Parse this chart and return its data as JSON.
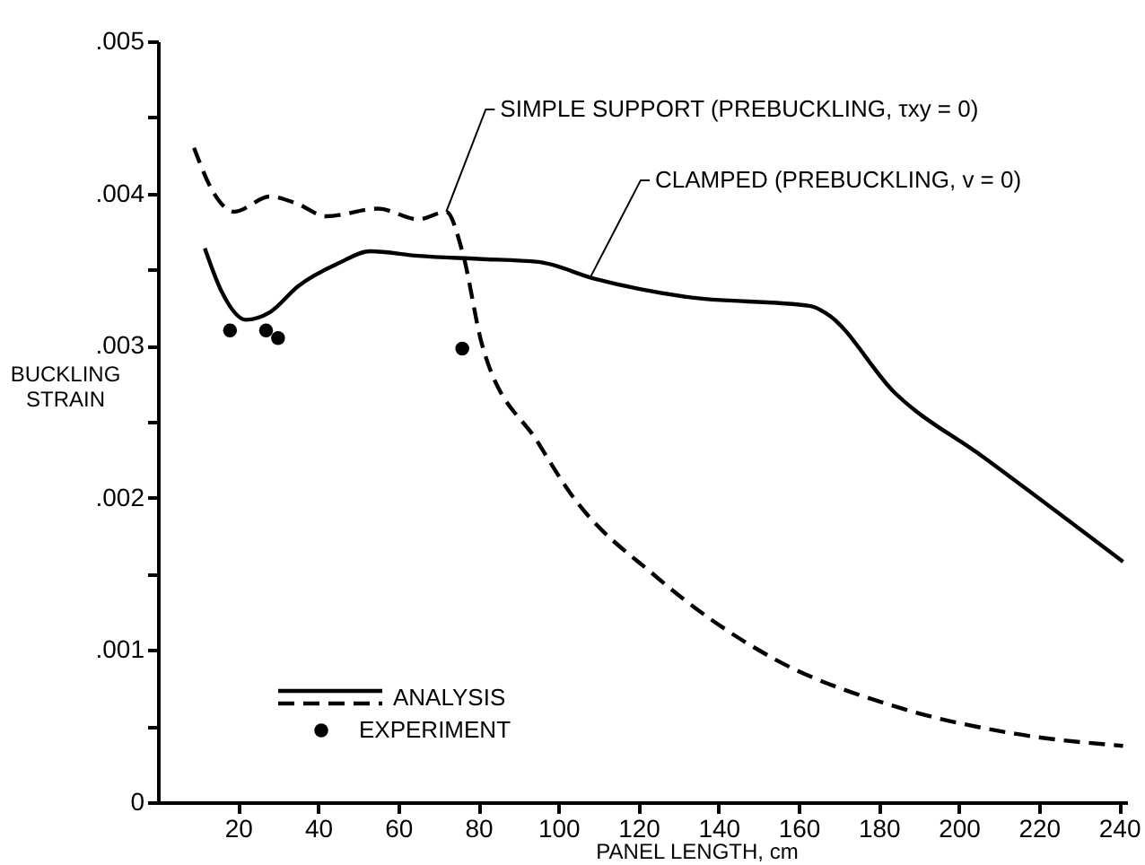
{
  "chart_data": {
    "type": "line",
    "xlabel": "PANEL LENGTH, cm",
    "ylabel": "BUCKLING STRAIN",
    "xlim": [
      0,
      242
    ],
    "xticks": [
      20,
      40,
      60,
      80,
      100,
      120,
      140,
      160,
      180,
      200,
      220,
      240
    ],
    "ylim": [
      0,
      0.005
    ],
    "yticks": [
      {
        "value": 0,
        "label": "0"
      },
      {
        "value": 0.0005,
        "label": null
      },
      {
        "value": 0.001,
        "label": ".001"
      },
      {
        "value": 0.0015,
        "label": null
      },
      {
        "value": 0.002,
        "label": ".002"
      },
      {
        "value": 0.0025,
        "label": null
      },
      {
        "value": 0.003,
        "label": ".003"
      },
      {
        "value": 0.0035,
        "label": null
      },
      {
        "value": 0.004,
        "label": ".004"
      },
      {
        "value": 0.0045,
        "label": null
      },
      {
        "value": 0.005,
        "label": ".005"
      }
    ],
    "grid": false,
    "legend": "bottom left",
    "series": [
      {
        "type": "line",
        "line_style": "dashed",
        "color": "#000000",
        "x": [
          9,
          14,
          19,
          28,
          35,
          42,
          55,
          65,
          72,
          76,
          81,
          95,
          103,
          124.5,
          154,
          184,
          214,
          241
        ],
        "values": [
          0.0043,
          0.004,
          0.00388,
          0.00398,
          0.00393,
          0.00385,
          0.0039,
          0.00383,
          0.00388,
          0.00362,
          0.003,
          0.00236,
          0.00203,
          0.00148,
          0.00094,
          0.00063,
          0.00045,
          0.00037
        ]
      },
      {
        "type": "line",
        "line_style": "solid",
        "color": "#000000",
        "x": [
          11.7,
          16,
          22,
          28,
          35,
          45,
          53,
          65,
          80,
          95,
          109,
          132,
          163,
          167,
          184,
          206,
          241
        ],
        "values": [
          0.00364,
          0.00335,
          0.00317,
          0.00322,
          0.00339,
          0.00354,
          0.00362,
          0.00359,
          0.00357,
          0.00355,
          0.00344,
          0.00332,
          0.00326,
          0.00321,
          0.00269,
          0.00227,
          0.00158
        ]
      },
      {
        "type": "scatter",
        "name": "EXPERIMENT",
        "color": "#000000",
        "marker": "circle",
        "x": [
          18,
          27,
          30,
          76
        ],
        "values": [
          0.0031,
          0.0031,
          0.00305,
          0.00298
        ]
      }
    ],
    "annotations": [
      {
        "text": "SIMPLE SUPPORT (PREBUCKLING, τxy = 0)",
        "x": 72,
        "y": 0.00388
      },
      {
        "text": "CLAMPED (PREBUCKLING, v = 0)",
        "x": 108,
        "y": 0.00345
      },
      "ANALYSIS"
    ]
  }
}
